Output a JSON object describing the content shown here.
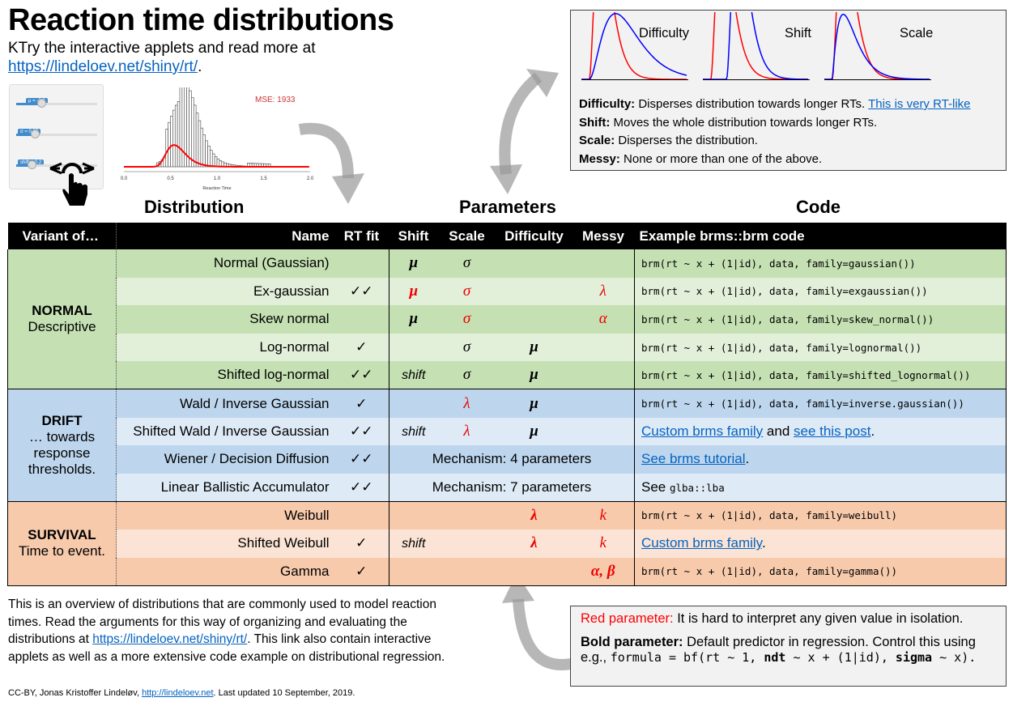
{
  "title": "Reaction time distributions",
  "subtitle": {
    "text": "KTry the interactive applets and read more at",
    "link": "https://lindeloev.net/shiny/rt/",
    "after": "."
  },
  "applet": {
    "sliders": [
      "μ = -0.9",
      "σ = 0.37",
      "shift = 0.2"
    ],
    "mse": "MSE: 1933",
    "xlabel": "Reaction Time",
    "xticks": [
      "0.0",
      "0.5",
      "1.0",
      "1.5",
      "2.0"
    ]
  },
  "sections": {
    "distribution": "Distribution",
    "parameters": "Parameters",
    "code": "Code"
  },
  "illustration": {
    "labels": [
      "Difficulty",
      "Shift",
      "Scale"
    ],
    "colors": {
      "before": "#ff0000",
      "after": "#0000ff"
    }
  },
  "definitions": [
    {
      "term": "Difficulty:",
      "text": " Disperses distribution towards longer RTs. ",
      "link": "This is very RT-like"
    },
    {
      "term": "Shift:",
      "text": " Moves the whole distribution towards longer RTs."
    },
    {
      "term": "Scale:",
      "text": " Disperses the distribution."
    },
    {
      "term": "Messy:",
      "text": " None or more than one of the above."
    }
  ],
  "table": {
    "headers": [
      "Variant of…",
      "Name",
      "RT fit",
      "Shift",
      "Scale",
      "Difficulty",
      "Messy",
      "Example brms::brm code"
    ],
    "groups": [
      {
        "title": "NORMAL",
        "subtitle": "Descriptive",
        "colors": [
          "#c5e0b3",
          "#e2efd9"
        ]
      },
      {
        "title": "DRIFT",
        "subtitle": "… towards response thresholds.",
        "colors": [
          "#bdd6ee",
          "#deeaf6"
        ]
      },
      {
        "title": "SURVIVAL",
        "subtitle": "Time to event.",
        "colors": [
          "#f7caac",
          "#fbe4d5"
        ]
      }
    ],
    "rows": [
      {
        "name": "Normal (Gaussian)",
        "fit": "",
        "shift": {
          "t": "μ",
          "bold": true
        },
        "scale": {
          "t": "σ"
        },
        "difficulty": null,
        "messy": null,
        "code": [
          {
            "k": "code",
            "t": "brm(rt ~ x + (1|id), data, family=gaussian())"
          }
        ]
      },
      {
        "name": "Ex-gaussian",
        "fit": "✓✓",
        "shift": {
          "t": "μ",
          "bold": true,
          "red": true
        },
        "scale": {
          "t": "σ",
          "red": true
        },
        "difficulty": null,
        "messy": {
          "t": "λ",
          "red": true
        },
        "code": [
          {
            "k": "code",
            "t": "brm(rt ~ x + (1|id), data, family=exgaussian())"
          }
        ]
      },
      {
        "name": "Skew normal",
        "fit": "",
        "shift": {
          "t": "μ",
          "bold": true
        },
        "scale": {
          "t": "σ",
          "red": true
        },
        "difficulty": null,
        "messy": {
          "t": "α",
          "red": true
        },
        "code": [
          {
            "k": "code",
            "t": "brm(rt ~ x + (1|id), data, family=skew_normal())"
          }
        ]
      },
      {
        "name": "Log-normal",
        "fit": "✓",
        "shift": null,
        "scale": {
          "t": "σ"
        },
        "difficulty": {
          "t": "μ",
          "bold": true
        },
        "messy": null,
        "code": [
          {
            "k": "code",
            "t": "brm(rt ~ x + (1|id), data, family=lognormal())"
          }
        ]
      },
      {
        "name": "Shifted log-normal",
        "fit": "✓✓",
        "shift": {
          "t": "shift",
          "plain": true
        },
        "scale": {
          "t": "σ"
        },
        "difficulty": {
          "t": "μ",
          "bold": true
        },
        "messy": null,
        "code": [
          {
            "k": "code",
            "t": "brm(rt ~ x + (1|id), data, family=shifted_lognormal())"
          }
        ]
      },
      {
        "name": "Wald / Inverse Gaussian",
        "fit": "✓",
        "shift": null,
        "scale": {
          "t": "λ",
          "red": true
        },
        "difficulty": {
          "t": "μ",
          "bold": true
        },
        "messy": null,
        "code": [
          {
            "k": "code",
            "t": "brm(rt ~ x + (1|id), data, family=inverse.gaussian())"
          }
        ]
      },
      {
        "name": "Shifted Wald / Inverse Gaussian",
        "fit": "✓✓",
        "shift": {
          "t": "shift",
          "plain": true
        },
        "scale": {
          "t": "λ",
          "red": true
        },
        "difficulty": {
          "t": "μ",
          "bold": true
        },
        "messy": null,
        "code": [
          {
            "k": "link",
            "t": "Custom brms family"
          },
          {
            "k": "txt",
            "t": " and "
          },
          {
            "k": "link",
            "t": "see this post"
          },
          {
            "k": "txt",
            "t": "."
          }
        ]
      },
      {
        "name": "Wiener / Decision Diffusion",
        "fit": "✓✓",
        "mechanism": "Mechanism: 4 parameters",
        "code": [
          {
            "k": "link",
            "t": "See brms tutorial"
          },
          {
            "k": "txt",
            "t": "."
          }
        ]
      },
      {
        "name": "Linear Ballistic Accumulator",
        "fit": "✓✓",
        "mechanism": "Mechanism: 7 parameters",
        "code": [
          {
            "k": "txt",
            "t": "See "
          },
          {
            "k": "code",
            "t": "glba::lba"
          }
        ]
      },
      {
        "name": "Weibull",
        "fit": "",
        "shift": null,
        "scale": null,
        "difficulty": {
          "t": "λ",
          "bold": true,
          "red": true
        },
        "messy": {
          "t": "k",
          "red": true
        },
        "code": [
          {
            "k": "code",
            "t": "brm(rt ~ x + (1|id), data, family=weibull)"
          }
        ]
      },
      {
        "name": "Shifted Weibull",
        "fit": "✓",
        "shift": {
          "t": "shift",
          "plain": true
        },
        "scale": null,
        "difficulty": {
          "t": "λ",
          "bold": true,
          "red": true
        },
        "messy": {
          "t": "k",
          "red": true
        },
        "code": [
          {
            "k": "link",
            "t": "Custom brms family"
          },
          {
            "k": "txt",
            "t": "."
          }
        ]
      },
      {
        "name": "Gamma",
        "fit": "✓",
        "shift": null,
        "scale": null,
        "difficulty": null,
        "messy": {
          "t": "α, β",
          "bold": true,
          "red": true
        },
        "code": [
          {
            "k": "code",
            "t": "brm(rt ~ x + (1|id), data, family=gamma())"
          }
        ]
      }
    ]
  },
  "footer": {
    "before": "This is an overview of distributions that are commonly used to model reaction times. Read the arguments for this way of organizing and evaluating the distributions at ",
    "link": "https://lindeloev.net/shiny/rt/",
    "after": ". This link also contain interactive applets as well as a more extensive code example on distributional regression."
  },
  "credit": {
    "before": "CC-BY, Jonas Kristoffer Lindeløv, ",
    "link": "http://lindeloev.net",
    "after": ". Last updated 10 September, 2019."
  },
  "legend": {
    "red_term": "Red parameter:",
    "red_text": " It is hard to interpret any given value in isolation.",
    "bold_term": "Bold parameter:",
    "bold_text": " Default predictor in regression. Control this using",
    "eg": "e.g., ",
    "f1": "formula = bf(rt ~ 1, ",
    "f2": "ndt",
    "f3": " ~ x + (1|id), ",
    "f4": "sigma",
    "f5": " ~ x)."
  }
}
